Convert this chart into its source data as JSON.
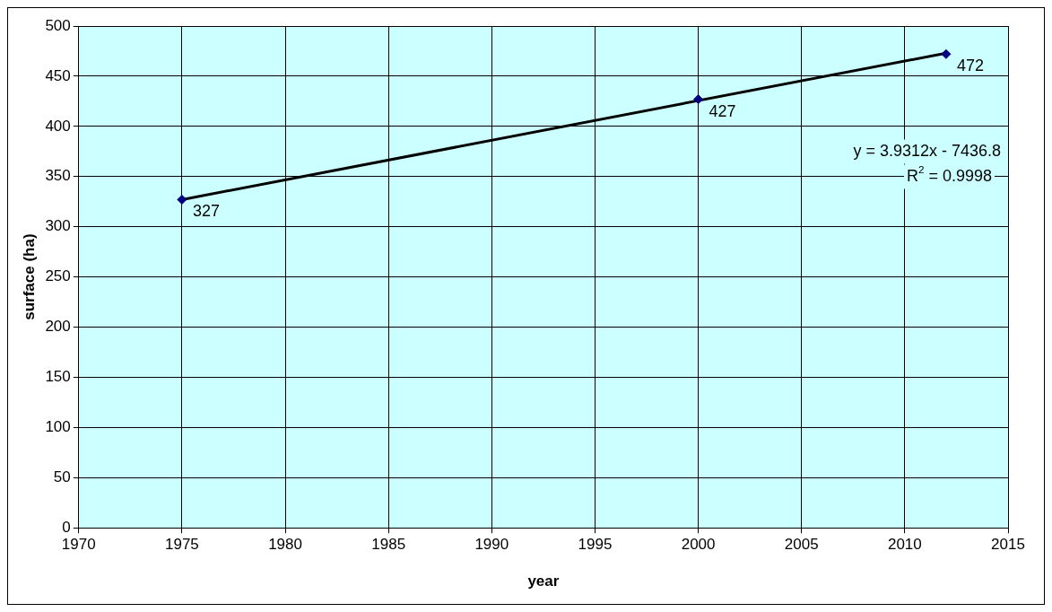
{
  "chart_data": {
    "type": "scatter",
    "xlabel": "year",
    "ylabel": "surface (ha)",
    "xlim": [
      1970,
      2015
    ],
    "xticks": [
      1970,
      1975,
      1980,
      1985,
      1990,
      1995,
      2000,
      2005,
      2010,
      2015
    ],
    "ylim": [
      0,
      500
    ],
    "yticks": [
      0,
      50,
      100,
      150,
      200,
      250,
      300,
      350,
      400,
      450,
      500
    ],
    "grid": true,
    "legend": false,
    "series": [
      {
        "color": "#000080",
        "marker": "diamond",
        "x": [
          1975,
          2000,
          2012
        ],
        "values": [
          327,
          427,
          472
        ],
        "value_labels": [
          "327",
          "427",
          "472"
        ]
      },
      {
        "type": "line",
        "color": "#000000",
        "marker": "none",
        "line_style": "solid",
        "x": [
          1975,
          2012
        ],
        "values": [
          327,
          473
        ]
      }
    ],
    "annotations": [
      "y = 3.9312x - 7436.8",
      "R$^{2}$ = 0.9998"
    ]
  }
}
